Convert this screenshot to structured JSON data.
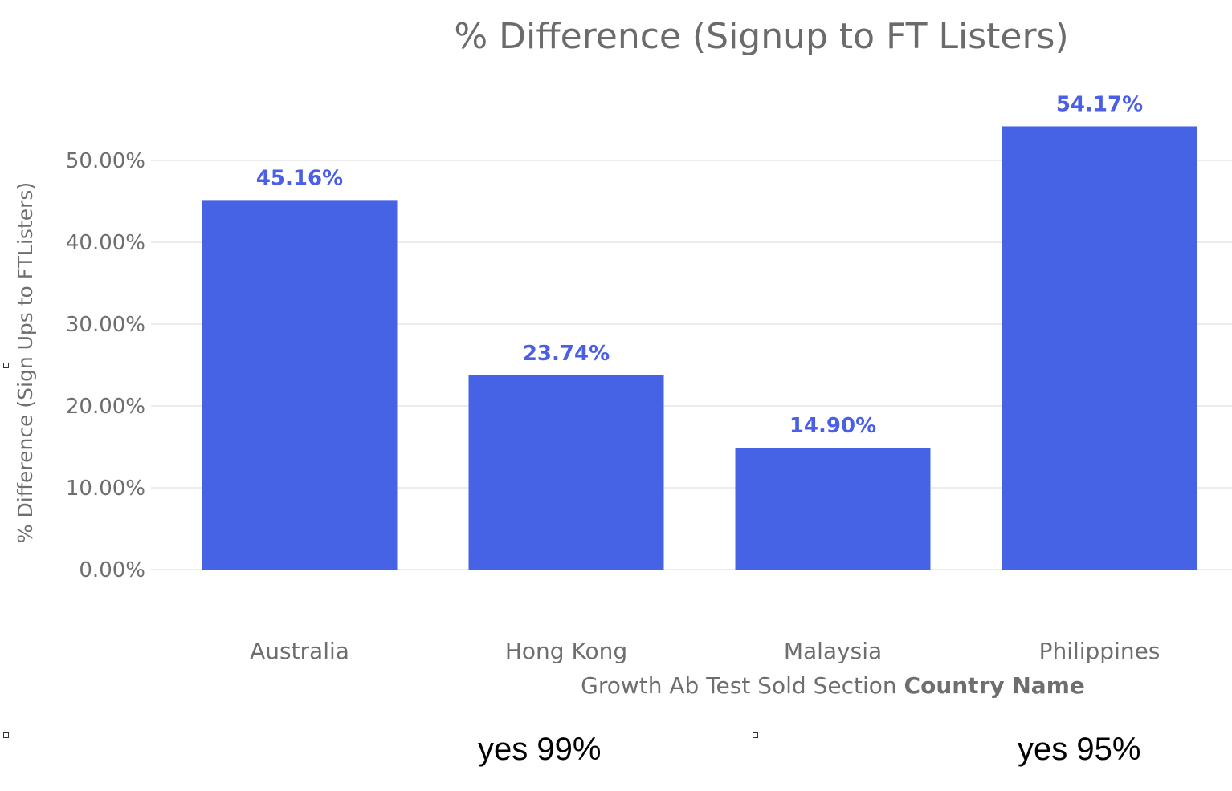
{
  "chart_data": {
    "type": "bar",
    "title": "% Difference (Signup to FT Listers)",
    "categories": [
      "Australia",
      "Hong Kong",
      "Malaysia",
      "Philippines"
    ],
    "values": [
      45.16,
      23.74,
      14.9,
      54.17
    ],
    "data_labels": [
      "45.16%",
      "23.74%",
      "14.90%",
      "54.17%"
    ],
    "ylabel": "% Difference (Sign Ups to FTListers)",
    "xlabel": {
      "normal": "Growth Ab Test Sold Section ",
      "bold": "Country Name"
    },
    "ylim": [
      0,
      55
    ],
    "yticks": [
      0,
      10,
      20,
      30,
      40,
      50
    ],
    "ytick_labels": [
      "0.00%",
      "10.00%",
      "20.00%",
      "30.00%",
      "40.00%",
      "50.00%"
    ],
    "grid": true,
    "legend": "none",
    "bar_color": "#4563e4",
    "label_color": "#4a5ee6"
  },
  "annotations": {
    "hong_kong_note": "yes 99%",
    "philippines_note": "yes 95%"
  }
}
